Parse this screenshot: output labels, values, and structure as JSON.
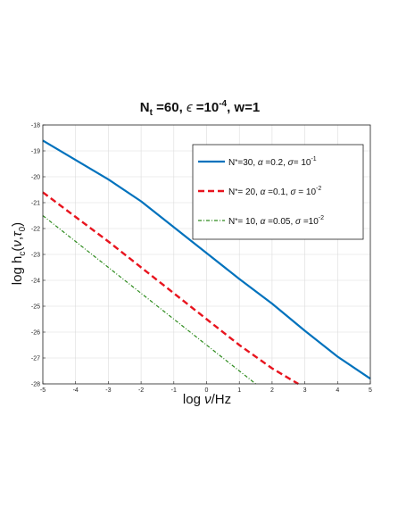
{
  "chart_data": {
    "type": "line",
    "title": "N_t =60, ε =10^-4, w=1",
    "title_parts": {
      "nt": "N",
      "nt_sub": "t",
      "nt_val": " =60, ",
      "eps": "ϵ",
      "eps_val": " =10",
      "eps_exp": "-4",
      "w": ", w=1"
    },
    "xlabel": "log ν/Hz",
    "ylabel": "log h_c(ν,τ_0)",
    "xlim": [
      -5,
      5
    ],
    "ylim": [
      -28,
      -18
    ],
    "xticks": [
      -5,
      -4,
      -3,
      -2,
      -1,
      0,
      1,
      2,
      3,
      4,
      5
    ],
    "yticks": [
      -28,
      -27,
      -26,
      -25,
      -24,
      -23,
      -22,
      -21,
      -20,
      -19,
      -18
    ],
    "grid": true,
    "legend_position": "top-right",
    "series": [
      {
        "name": "N*=30, α =0.2, σ= 10^-1",
        "legend": {
          "n": "N",
          "n_rest": "=30, ",
          "alpha": "α",
          "alpha_val": " =0.2, ",
          "sigma": "σ",
          "sigma_val": "= 10",
          "exp": "-1"
        },
        "color": "#0072BD",
        "dash": "solid",
        "x": [
          -5,
          -4,
          -3,
          -2,
          -1,
          0,
          1,
          2,
          3,
          4,
          5
        ],
        "y": [
          -18.6,
          -19.35,
          -20.1,
          -20.95,
          -21.95,
          -22.95,
          -23.95,
          -24.9,
          -25.95,
          -26.95,
          -27.8
        ]
      },
      {
        "name": "N*= 20, α =0.1, σ = 10^-2",
        "legend": {
          "n": "N",
          "n_rest": "= 20, ",
          "alpha": "α",
          "alpha_val": " =0.1, ",
          "sigma": "σ",
          "sigma_val": " = 10",
          "exp": "-2"
        },
        "color": "#E8141E",
        "dash": "dashed",
        "x": [
          -5,
          -4,
          -3,
          -2,
          -1,
          0,
          1,
          2,
          2.6,
          2.8
        ],
        "y": [
          -20.6,
          -21.55,
          -22.5,
          -23.5,
          -24.5,
          -25.5,
          -26.5,
          -27.4,
          -27.85,
          -28.0
        ]
      },
      {
        "name": "N*= 10, α =0.05, σ =10^-2",
        "legend": {
          "n": "N",
          "n_rest": "= 10, ",
          "alpha": "α",
          "alpha_val": " =0.05, ",
          "sigma": "σ",
          "sigma_val": " =10",
          "exp": "-2"
        },
        "color": "#2E8B1E",
        "dash": "dashdot",
        "x": [
          -5,
          -4,
          -3,
          -2,
          -1,
          0,
          1,
          1.5
        ],
        "y": [
          -21.5,
          -22.5,
          -23.5,
          -24.5,
          -25.5,
          -26.5,
          -27.5,
          -28.0
        ]
      }
    ]
  }
}
